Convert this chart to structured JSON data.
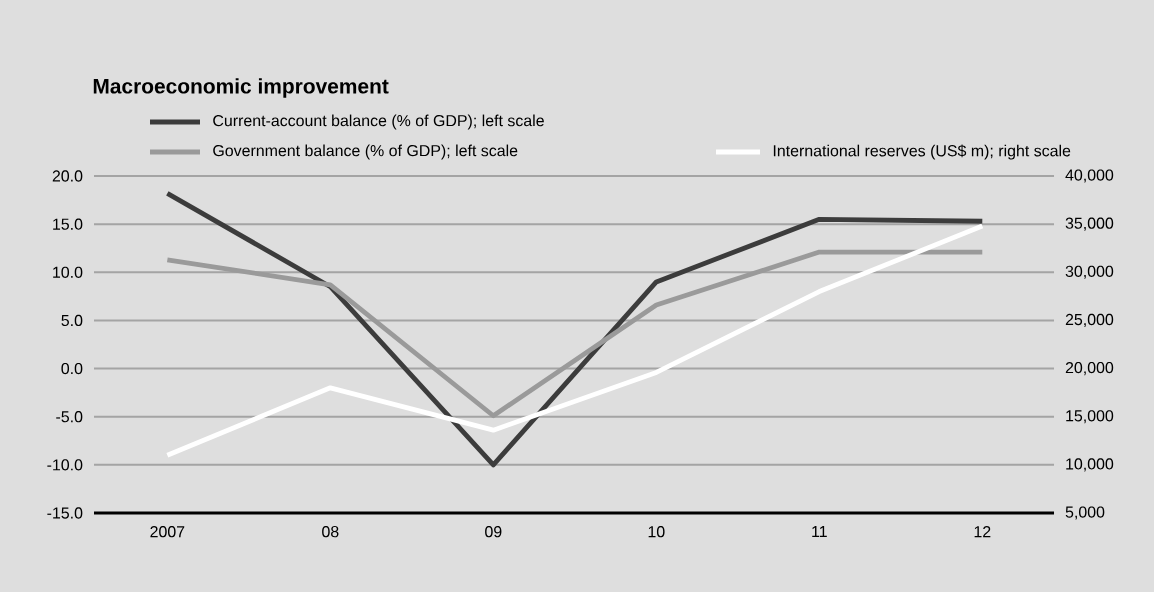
{
  "chart_data": {
    "type": "line",
    "title": "Macroeconomic improvement",
    "categories": [
      "2007",
      "08",
      "09",
      "10",
      "11",
      "12"
    ],
    "series": [
      {
        "name": "Current-account balance (% of GDP); left scale",
        "color": "#3c3c3c",
        "values": [
          18.2,
          8.5,
          -10.0,
          9.0,
          15.5,
          15.3
        ]
      },
      {
        "name": "Government balance (% of GDP); left scale",
        "color": "#9a9a9a",
        "values": [
          11.3,
          8.7,
          -4.9,
          6.6,
          12.1,
          12.1
        ]
      },
      {
        "name": "International reserves (US$ m); right scale",
        "color": "#ffffff",
        "axis": "y2",
        "values": [
          11000,
          18000,
          13600,
          19600,
          28000,
          34800
        ]
      }
    ],
    "ylim": [
      -15,
      20
    ],
    "yticks": [
      {
        "value": -15,
        "label": "-15.0"
      },
      {
        "value": -10,
        "label": "-10.0"
      },
      {
        "value": -5,
        "label": "-5.0"
      },
      {
        "value": 0,
        "label": "0.0"
      },
      {
        "value": 5,
        "label": "5.0"
      },
      {
        "value": 10,
        "label": "10.0"
      },
      {
        "value": 15,
        "label": "15.0"
      },
      {
        "value": 20,
        "label": "20.0"
      }
    ],
    "y2lim": [
      5000,
      40000
    ],
    "y2ticks": [
      {
        "value": 5000,
        "label": "5,000"
      },
      {
        "value": 10000,
        "label": "10,000"
      },
      {
        "value": 15000,
        "label": "15,000"
      },
      {
        "value": 20000,
        "label": "20,000"
      },
      {
        "value": 25000,
        "label": "25,000"
      },
      {
        "value": 30000,
        "label": "30,000"
      },
      {
        "value": 35000,
        "label": "35,000"
      },
      {
        "value": 40000,
        "label": "40,000"
      }
    ],
    "grid": "y",
    "legend": "top"
  }
}
